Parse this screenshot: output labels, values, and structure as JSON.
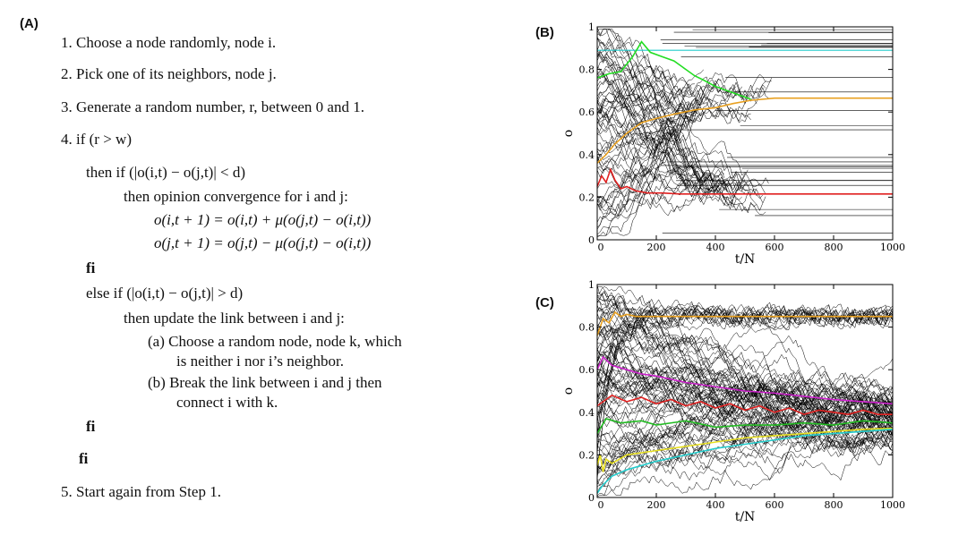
{
  "panels": {
    "a": "(A)",
    "b": "(B)",
    "c": "(C)"
  },
  "algorithm": {
    "step1": "1. Choose a node randomly, node i.",
    "step2": "2. Pick one of its neighbors, node j.",
    "step3": "3. Generate a random number, r, between 0 and 1.",
    "step4": "4. if (r > w)",
    "then_if": "then if (|o(i,t) − o(j,t)| < d)",
    "then_conv": "then opinion convergence for i and j:",
    "eq1": "o(i,t + 1) = o(i,t) + μ(o(j,t) − o(i,t))",
    "eq2": "o(j,t + 1) = o(j,t) − μ(o(j,t) − o(i,t))",
    "fi1": "fi",
    "else_if": "else if (|o(i,t) − o(j,t)| > d)",
    "then_update": "then update the link between i and j:",
    "sub_a1": "(a) Choose a random node, node k, which",
    "sub_a2": "is neither i nor i’s neighbor.",
    "sub_b1": "(b) Break the link between i and j then",
    "sub_b2": "connect i with k.",
    "fi2": "fi",
    "fi3": "fi",
    "step5": "5. Start again from Step 1."
  },
  "chart_data": [
    {
      "id": "B",
      "type": "line",
      "xlabel": "t/N",
      "ylabel": "o",
      "xlim": [
        0,
        1000
      ],
      "ylim": [
        0,
        1
      ],
      "xticks": [
        0,
        200,
        400,
        600,
        800,
        1000
      ],
      "yticks": [
        0,
        0.2,
        0.4,
        0.6,
        0.8,
        1
      ],
      "ytick_labels": [
        "0",
        "0.2",
        "0.4",
        "0.6",
        "0.8",
        "1"
      ],
      "series": [
        {
          "color": "#22dd22",
          "x": [
            0,
            40,
            80,
            120,
            150,
            180,
            220,
            260,
            300,
            330,
            360,
            400,
            440,
            480,
            520
          ],
          "y": [
            0.76,
            0.78,
            0.79,
            0.86,
            0.93,
            0.88,
            0.86,
            0.84,
            0.8,
            0.77,
            0.75,
            0.72,
            0.7,
            0.68,
            0.66
          ]
        },
        {
          "color": "#e8a020",
          "x": [
            0,
            30,
            60,
            100,
            150,
            200,
            260,
            330,
            400,
            460,
            520,
            600,
            1000
          ],
          "y": [
            0.36,
            0.4,
            0.45,
            0.5,
            0.55,
            0.57,
            0.59,
            0.61,
            0.62,
            0.64,
            0.655,
            0.665,
            0.665
          ]
        },
        {
          "color": "#e02020",
          "x": [
            0,
            15,
            30,
            45,
            60,
            80,
            100,
            130,
            170,
            220,
            280,
            360,
            460,
            1000
          ],
          "y": [
            0.25,
            0.3,
            0.27,
            0.33,
            0.28,
            0.24,
            0.25,
            0.23,
            0.22,
            0.22,
            0.215,
            0.215,
            0.215,
            0.215
          ]
        }
      ],
      "cyan_flat_y": 0.89
    },
    {
      "id": "C",
      "type": "line",
      "xlabel": "t/N",
      "ylabel": "o",
      "xlim": [
        0,
        1000
      ],
      "ylim": [
        0,
        1
      ],
      "xticks": [
        0,
        200,
        400,
        600,
        800,
        1000
      ],
      "yticks": [
        0,
        0.2,
        0.4,
        0.6,
        0.8,
        1
      ],
      "ytick_labels": [
        "0",
        "0.2",
        "0.4",
        "0.6",
        "0.8",
        "1"
      ],
      "series": [
        {
          "color": "#e8a020",
          "x": [
            0,
            10,
            20,
            40,
            60,
            80,
            100,
            130,
            160,
            200,
            1000
          ],
          "y": [
            0.76,
            0.8,
            0.84,
            0.82,
            0.87,
            0.85,
            0.86,
            0.85,
            0.85,
            0.85,
            0.85
          ]
        },
        {
          "color": "#cc22cc",
          "x": [
            0,
            20,
            50,
            100,
            150,
            200,
            300,
            400,
            500,
            600,
            700,
            800,
            900,
            1000
          ],
          "y": [
            0.6,
            0.66,
            0.62,
            0.6,
            0.58,
            0.57,
            0.54,
            0.52,
            0.5,
            0.49,
            0.475,
            0.46,
            0.45,
            0.44
          ]
        },
        {
          "color": "#e02020",
          "x": [
            0,
            50,
            100,
            150,
            200,
            250,
            300,
            350,
            400,
            450,
            500,
            550,
            600,
            650,
            700,
            750,
            800,
            850,
            900,
            950,
            1000
          ],
          "y": [
            0.43,
            0.48,
            0.45,
            0.47,
            0.44,
            0.46,
            0.43,
            0.45,
            0.42,
            0.44,
            0.41,
            0.43,
            0.4,
            0.42,
            0.39,
            0.41,
            0.4,
            0.39,
            0.41,
            0.39,
            0.39
          ]
        },
        {
          "color": "#22bb22",
          "x": [
            0,
            30,
            80,
            150,
            200,
            300,
            400,
            500,
            600,
            700,
            800,
            900,
            1000
          ],
          "y": [
            0.3,
            0.37,
            0.35,
            0.36,
            0.34,
            0.36,
            0.33,
            0.34,
            0.34,
            0.35,
            0.34,
            0.36,
            0.35
          ]
        },
        {
          "color": "#e8e020",
          "x": [
            0,
            10,
            20,
            30,
            50,
            100,
            200,
            300,
            400,
            500,
            600,
            700,
            800,
            900,
            1000
          ],
          "y": [
            0.15,
            0.2,
            0.12,
            0.18,
            0.16,
            0.2,
            0.22,
            0.24,
            0.26,
            0.28,
            0.29,
            0.3,
            0.31,
            0.32,
            0.325
          ]
        },
        {
          "color": "#22cccc",
          "x": [
            0,
            20,
            50,
            100,
            200,
            300,
            400,
            500,
            600,
            700,
            800,
            900,
            1000
          ],
          "y": [
            0.02,
            0.06,
            0.1,
            0.13,
            0.17,
            0.2,
            0.23,
            0.25,
            0.27,
            0.29,
            0.3,
            0.31,
            0.32
          ]
        }
      ]
    }
  ]
}
